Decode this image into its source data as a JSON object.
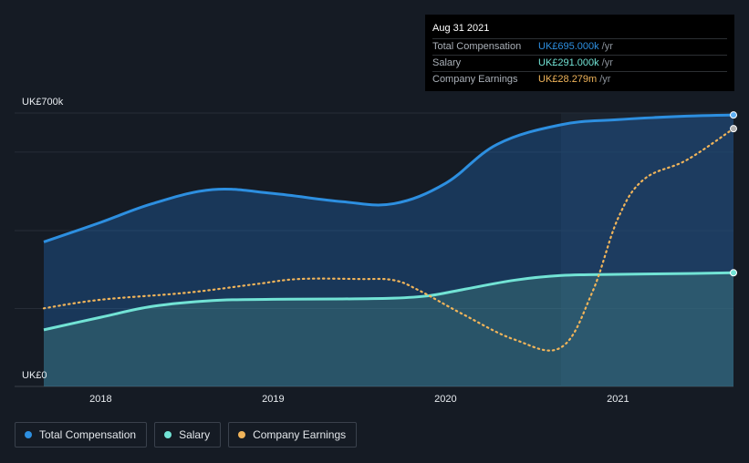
{
  "chart_data": {
    "type": "area",
    "y_unit": "UK£k",
    "ylim": [
      0,
      700
    ],
    "y_tick_labels": [
      "UK£700k",
      "UK£0"
    ],
    "x_tick_labels": [
      "2018",
      "2019",
      "2020",
      "2021"
    ],
    "x_ticks": [
      2018,
      2019,
      2020,
      2021
    ],
    "xlim": [
      2017.67,
      2021.67
    ],
    "series": [
      {
        "name": "Total Compensation",
        "color": "#2d8fe0",
        "x": [
          2017.67,
          2018.0,
          2018.3,
          2018.65,
          2019.0,
          2019.4,
          2019.7,
          2020.0,
          2020.3,
          2020.67,
          2021.0,
          2021.4,
          2021.67
        ],
        "values": [
          370,
          420,
          468,
          504,
          494,
          473,
          468,
          520,
          620,
          670,
          683,
          692,
          695
        ]
      },
      {
        "name": "Salary",
        "color": "#72e3d5",
        "x": [
          2017.67,
          2018.0,
          2018.3,
          2018.65,
          2019.0,
          2019.4,
          2019.7,
          2019.9,
          2020.1,
          2020.4,
          2020.67,
          2021.0,
          2021.4,
          2021.67
        ],
        "values": [
          145,
          177,
          205,
          220,
          223,
          224,
          226,
          232,
          248,
          272,
          284,
          287,
          289,
          291
        ]
      },
      {
        "name": "Company Earnings",
        "color": "#f0b45a",
        "unit": "UK£m",
        "x": [
          2017.67,
          2018.0,
          2018.5,
          2018.9,
          2019.15,
          2019.5,
          2019.7,
          2019.85,
          2020.1,
          2020.4,
          2020.67,
          2020.85,
          2021.0,
          2021.15,
          2021.4,
          2021.67
        ],
        "values_scaled": [
          200,
          222,
          240,
          262,
          275,
          275,
          272,
          245,
          185,
          120,
          100,
          240,
          430,
          530,
          580,
          660
        ]
      }
    ],
    "tooltip": {
      "date": "Aug 31 2021",
      "rows": [
        {
          "name": "Total Compensation",
          "value": "UK£695.000k",
          "unit": "/yr",
          "color": "#2d8fe0"
        },
        {
          "name": "Salary",
          "value": "UK£291.000k",
          "unit": "/yr",
          "color": "#72e3d5"
        },
        {
          "name": "Company Earnings",
          "value": "UK£28.279m",
          "unit": "/yr",
          "color": "#f0b45a"
        }
      ]
    },
    "legend": [
      {
        "label": "Total Compensation",
        "color": "#2d8fe0"
      },
      {
        "label": "Salary",
        "color": "#72e3d5"
      },
      {
        "label": "Company Earnings",
        "color": "#f0b45a"
      }
    ]
  }
}
